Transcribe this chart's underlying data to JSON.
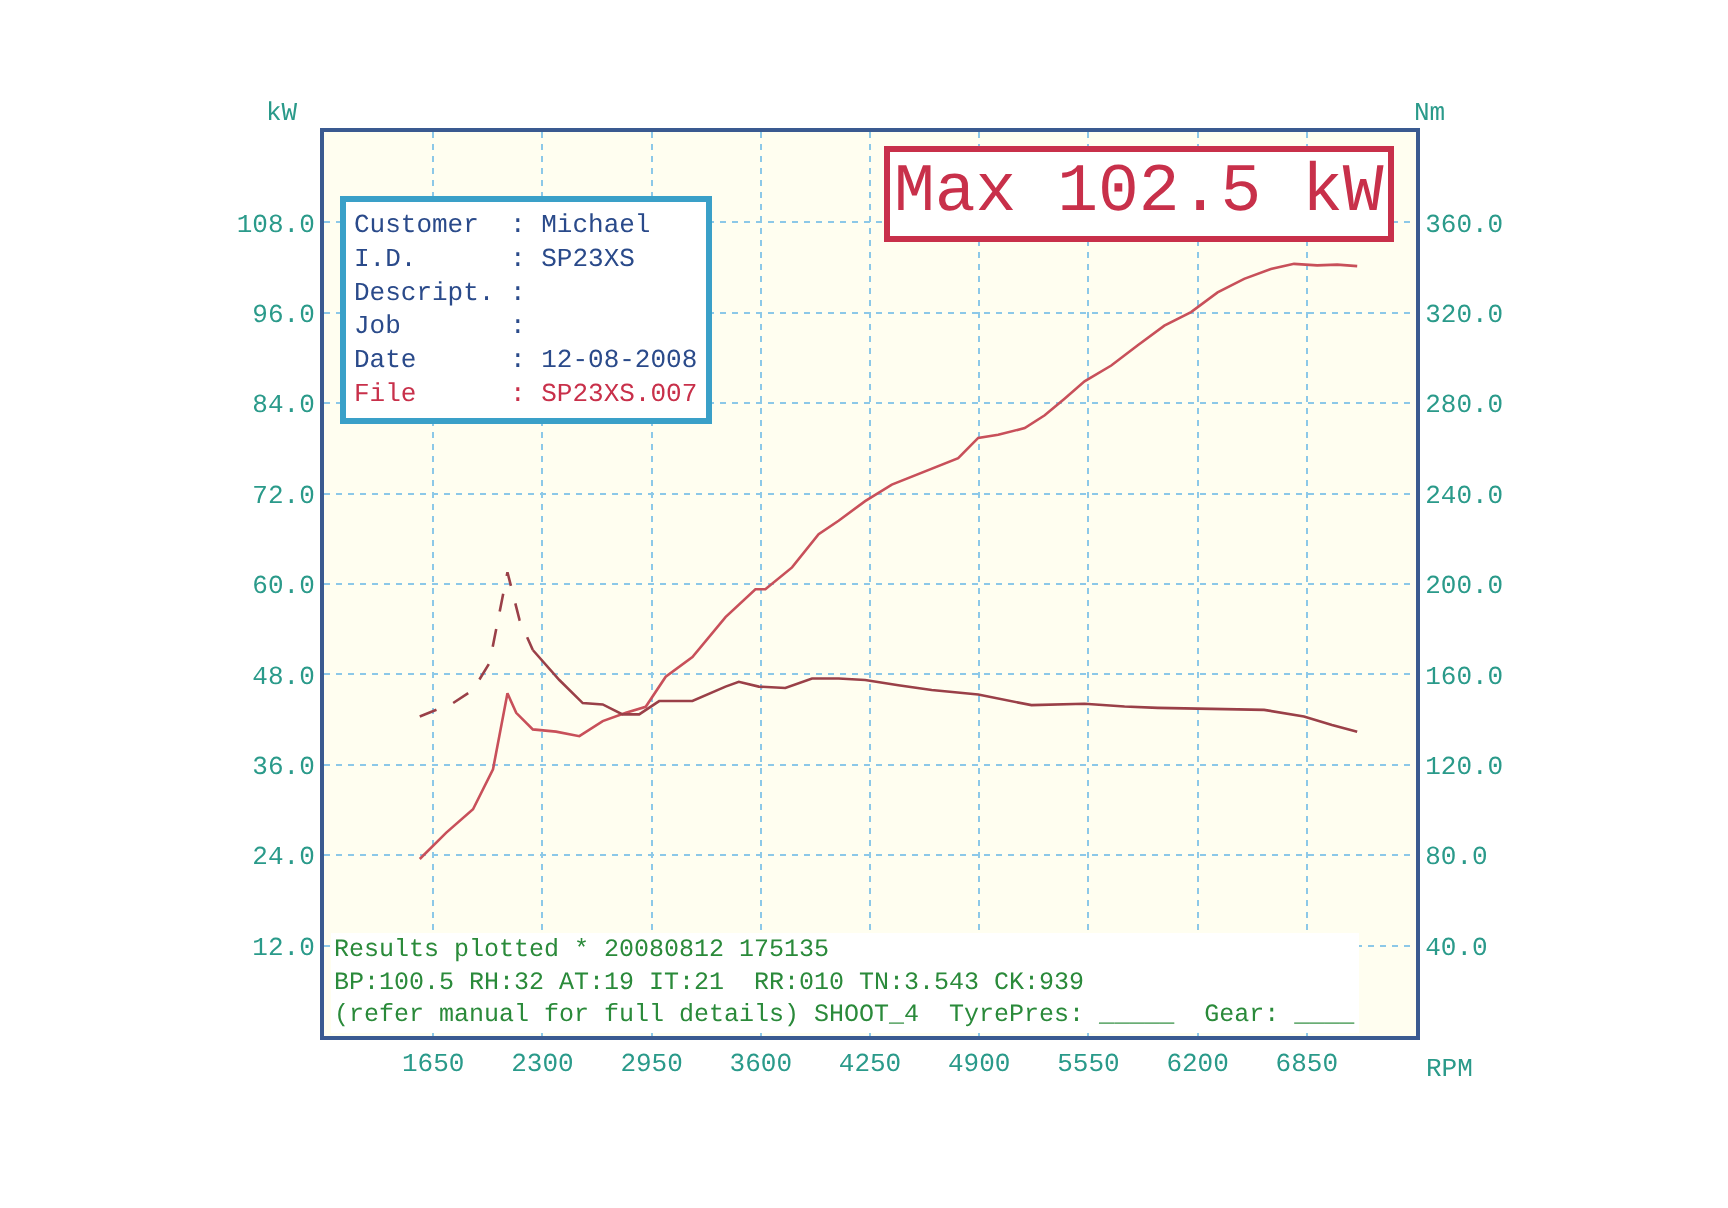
{
  "chart_data": {
    "type": "line",
    "title": "Max 102.5 kW",
    "xlabel": "RPM",
    "ylabel": "kW",
    "y2label": "Nm",
    "xlim": [
      1000,
      7500
    ],
    "xticks": [
      1650,
      2300,
      2950,
      3600,
      4250,
      4900,
      5550,
      6200,
      6850
    ],
    "ylim": [
      0,
      120
    ],
    "yticks": [
      {
        "value": 12,
        "label": "12.0"
      },
      {
        "value": 24,
        "label": "24.0"
      },
      {
        "value": 36,
        "label": "36.0"
      },
      {
        "value": 48,
        "label": "48.0"
      },
      {
        "value": 60,
        "label": "60.0"
      },
      {
        "value": 72,
        "label": "72.0"
      },
      {
        "value": 84,
        "label": "84.0"
      },
      {
        "value": 96,
        "label": "96.0"
      },
      {
        "value": 108,
        "label": "108.0"
      }
    ],
    "y2lim": [
      0,
      400
    ],
    "y2ticks": [
      {
        "value": 40,
        "label": "40.0"
      },
      {
        "value": 80,
        "label": "80.0"
      },
      {
        "value": 120,
        "label": "120.0"
      },
      {
        "value": 160,
        "label": "160.0"
      },
      {
        "value": 200,
        "label": "200.0"
      },
      {
        "value": 240,
        "label": "240.0"
      },
      {
        "value": 280,
        "label": "280.0"
      },
      {
        "value": 320,
        "label": "320.0"
      },
      {
        "value": 360,
        "label": "360.0"
      }
    ],
    "grid": true,
    "series": [
      {
        "color": "#c8505a",
        "line_style": "solid",
        "x": [
          1570,
          1728,
          1887,
          2006,
          2092,
          2144,
          2243,
          2381,
          2520,
          2659,
          2797,
          2915,
          3034,
          3193,
          3390,
          3568,
          3627,
          3786,
          3944,
          4063,
          4221,
          4380,
          4775,
          4894,
          5013,
          5171,
          5290,
          5408,
          5527,
          5686,
          5844,
          6002,
          6161,
          6319,
          6477,
          6636,
          6774,
          6912,
          7031,
          7150
        ],
        "values": [
          23.5,
          27.0,
          30.1,
          35.4,
          45.5,
          42.9,
          40.7,
          40.4,
          39.8,
          41.8,
          42.9,
          43.7,
          47.7,
          50.3,
          55.6,
          59.3,
          59.3,
          62.2,
          66.6,
          68.4,
          71.0,
          73.2,
          76.7,
          79.4,
          79.8,
          80.7,
          82.4,
          84.6,
          86.9,
          89.0,
          91.7,
          94.3,
          96.1,
          98.7,
          100.5,
          101.8,
          102.5,
          102.3,
          102.4,
          102.2
        ]
      },
      {
        "color": "#9a4048",
        "line_style": "dashed",
        "axis": "y2",
        "x": [
          1570,
          1768,
          1887,
          1985,
          2092,
          2164,
          2243
        ],
        "values": [
          141.4,
          147.3,
          153.1,
          165.0,
          205.2,
          184.0,
          170.8
        ]
      },
      {
        "color": "#9a4048",
        "line_style": "solid",
        "axis": "y2",
        "x": [
          2243,
          2401,
          2540,
          2659,
          2777,
          2876,
          2995,
          3193,
          3390,
          3469,
          3588,
          3746,
          3905,
          4063,
          4221,
          4419,
          4617,
          4894,
          5211,
          5527,
          5765,
          5963,
          6596,
          6833,
          7000,
          7150
        ],
        "values": [
          170.8,
          157.5,
          147.3,
          146.7,
          142.3,
          142.3,
          148.2,
          148.2,
          154.6,
          156.7,
          154.6,
          154.0,
          158.2,
          158.2,
          157.5,
          155.2,
          153.1,
          151.1,
          146.4,
          147.0,
          145.8,
          145.2,
          144.3,
          141.4,
          137.6,
          134.6
        ]
      }
    ],
    "annotations": [
      "Customer  : Michael",
      "I.D.      : SP23XS",
      "Descript. :",
      "Job       :",
      "Date      : 12-08-2008",
      "File      : SP23XS.007",
      "Results plotted * 20080812 175135",
      "BP:100.5 RH:32 AT:19 IT:21  RR:010 TN:3.543 CK:939",
      "(refer manual for full details) SHOOT_4  TyrePres: _____  Gear: ____"
    ]
  }
}
